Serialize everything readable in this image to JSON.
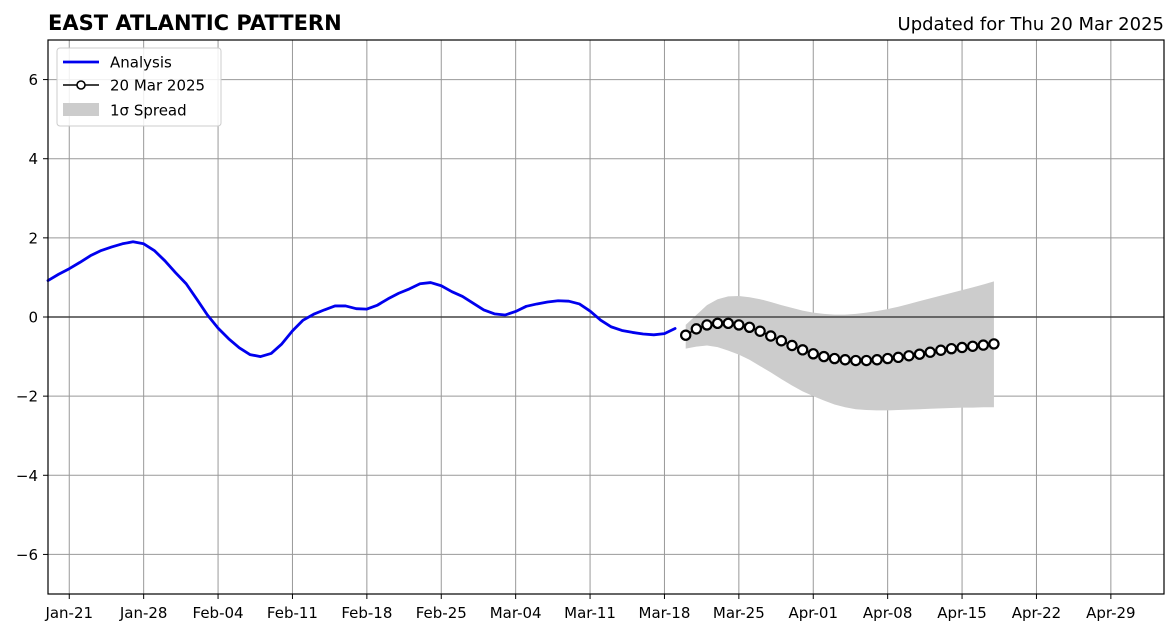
{
  "chart_data": {
    "type": "line",
    "title": "EAST ATLANTIC PATTERN",
    "subtitle": "Updated for Thu 20 Mar 2025",
    "xlabel": "",
    "ylabel": "",
    "x_axis": {
      "type": "date",
      "range": [
        "2025-01-19",
        "2025-05-04"
      ],
      "tick_labels": [
        {
          "date": "2025-01-21",
          "label": "Jan-21"
        },
        {
          "date": "2025-01-28",
          "label": "Jan-28"
        },
        {
          "date": "2025-02-04",
          "label": "Feb-04"
        },
        {
          "date": "2025-02-11",
          "label": "Feb-11"
        },
        {
          "date": "2025-02-18",
          "label": "Feb-18"
        },
        {
          "date": "2025-02-25",
          "label": "Feb-25"
        },
        {
          "date": "2025-03-04",
          "label": "Mar-04"
        },
        {
          "date": "2025-03-11",
          "label": "Mar-11"
        },
        {
          "date": "2025-03-18",
          "label": "Mar-18"
        },
        {
          "date": "2025-03-25",
          "label": "Mar-25"
        },
        {
          "date": "2025-04-01",
          "label": "Apr-01"
        },
        {
          "date": "2025-04-08",
          "label": "Apr-08"
        },
        {
          "date": "2025-04-15",
          "label": "Apr-15"
        },
        {
          "date": "2025-04-22",
          "label": "Apr-22"
        },
        {
          "date": "2025-04-29",
          "label": "Apr-29"
        }
      ]
    },
    "y_axis": {
      "range": [
        -7,
        7
      ],
      "ticks": [
        -6,
        -4,
        -2,
        0,
        2,
        4,
        6
      ],
      "tick_labels": [
        "−6",
        "−4",
        "−2",
        "0",
        "2",
        "4",
        "6"
      ]
    },
    "grid": true,
    "zero_line": true,
    "legend": {
      "placement": "top-left",
      "entries": [
        {
          "key": "analysis",
          "label": "Analysis"
        },
        {
          "key": "forecast",
          "label": "20 Mar 2025"
        },
        {
          "key": "spread",
          "label": "1σ Spread"
        }
      ]
    },
    "colors": {
      "analysis": "#0000ee",
      "forecast": "#000000",
      "spread": "#cccccc",
      "grid": "#999999"
    },
    "series": [
      {
        "key": "analysis",
        "name": "Analysis",
        "points": [
          [
            "2025-01-19",
            0.92
          ],
          [
            "2025-01-20",
            1.08
          ],
          [
            "2025-01-21",
            1.22
          ],
          [
            "2025-01-22",
            1.38
          ],
          [
            "2025-01-23",
            1.55
          ],
          [
            "2025-01-24",
            1.68
          ],
          [
            "2025-01-25",
            1.77
          ],
          [
            "2025-01-26",
            1.85
          ],
          [
            "2025-01-27",
            1.9
          ],
          [
            "2025-01-28",
            1.85
          ],
          [
            "2025-01-29",
            1.68
          ],
          [
            "2025-01-30",
            1.42
          ],
          [
            "2025-01-31",
            1.12
          ],
          [
            "2025-02-01",
            0.84
          ],
          [
            "2025-02-02",
            0.45
          ],
          [
            "2025-02-03",
            0.05
          ],
          [
            "2025-02-04",
            -0.28
          ],
          [
            "2025-02-05",
            -0.55
          ],
          [
            "2025-02-06",
            -0.78
          ],
          [
            "2025-02-07",
            -0.95
          ],
          [
            "2025-02-08",
            -1.0
          ],
          [
            "2025-02-09",
            -0.92
          ],
          [
            "2025-02-10",
            -0.68
          ],
          [
            "2025-02-11",
            -0.35
          ],
          [
            "2025-02-12",
            -0.08
          ],
          [
            "2025-02-13",
            0.07
          ],
          [
            "2025-02-14",
            0.18
          ],
          [
            "2025-02-15",
            0.28
          ],
          [
            "2025-02-16",
            0.28
          ],
          [
            "2025-02-17",
            0.21
          ],
          [
            "2025-02-18",
            0.2
          ],
          [
            "2025-02-19",
            0.3
          ],
          [
            "2025-02-20",
            0.46
          ],
          [
            "2025-02-21",
            0.6
          ],
          [
            "2025-02-22",
            0.71
          ],
          [
            "2025-02-23",
            0.84
          ],
          [
            "2025-02-24",
            0.87
          ],
          [
            "2025-02-25",
            0.79
          ],
          [
            "2025-02-26",
            0.64
          ],
          [
            "2025-02-27",
            0.52
          ],
          [
            "2025-02-28",
            0.35
          ],
          [
            "2025-03-01",
            0.18
          ],
          [
            "2025-03-02",
            0.08
          ],
          [
            "2025-03-03",
            0.05
          ],
          [
            "2025-03-04",
            0.14
          ],
          [
            "2025-03-05",
            0.27
          ],
          [
            "2025-03-06",
            0.33
          ],
          [
            "2025-03-07",
            0.38
          ],
          [
            "2025-03-08",
            0.41
          ],
          [
            "2025-03-09",
            0.4
          ],
          [
            "2025-03-10",
            0.33
          ],
          [
            "2025-03-11",
            0.15
          ],
          [
            "2025-03-12",
            -0.08
          ],
          [
            "2025-03-13",
            -0.25
          ],
          [
            "2025-03-14",
            -0.34
          ],
          [
            "2025-03-15",
            -0.39
          ],
          [
            "2025-03-16",
            -0.43
          ],
          [
            "2025-03-17",
            -0.45
          ],
          [
            "2025-03-18",
            -0.42
          ],
          [
            "2025-03-19",
            -0.29
          ]
        ]
      },
      {
        "key": "forecast",
        "name": "20 Mar 2025",
        "points": [
          [
            "2025-03-20",
            -0.46
          ],
          [
            "2025-03-21",
            -0.3
          ],
          [
            "2025-03-22",
            -0.2
          ],
          [
            "2025-03-23",
            -0.16
          ],
          [
            "2025-03-24",
            -0.16
          ],
          [
            "2025-03-25",
            -0.2
          ],
          [
            "2025-03-26",
            -0.26
          ],
          [
            "2025-03-27",
            -0.36
          ],
          [
            "2025-03-28",
            -0.48
          ],
          [
            "2025-03-29",
            -0.6
          ],
          [
            "2025-03-30",
            -0.72
          ],
          [
            "2025-03-31",
            -0.83
          ],
          [
            "2025-04-01",
            -0.93
          ],
          [
            "2025-04-02",
            -1.0
          ],
          [
            "2025-04-03",
            -1.05
          ],
          [
            "2025-04-04",
            -1.08
          ],
          [
            "2025-04-05",
            -1.1
          ],
          [
            "2025-04-06",
            -1.1
          ],
          [
            "2025-04-07",
            -1.08
          ],
          [
            "2025-04-08",
            -1.05
          ],
          [
            "2025-04-09",
            -1.02
          ],
          [
            "2025-04-10",
            -0.98
          ],
          [
            "2025-04-11",
            -0.94
          ],
          [
            "2025-04-12",
            -0.89
          ],
          [
            "2025-04-13",
            -0.84
          ],
          [
            "2025-04-14",
            -0.8
          ],
          [
            "2025-04-15",
            -0.77
          ],
          [
            "2025-04-16",
            -0.74
          ],
          [
            "2025-04-17",
            -0.71
          ],
          [
            "2025-04-18",
            -0.68
          ]
        ]
      }
    ],
    "spread_band": {
      "key": "spread",
      "name": "1σ Spread",
      "points": [
        [
          "2025-03-20",
          -0.8,
          -0.2
        ],
        [
          "2025-03-21",
          -0.75,
          0.05
        ],
        [
          "2025-03-22",
          -0.72,
          0.3
        ],
        [
          "2025-03-23",
          -0.76,
          0.45
        ],
        [
          "2025-03-24",
          -0.85,
          0.52
        ],
        [
          "2025-03-25",
          -0.95,
          0.53
        ],
        [
          "2025-03-26",
          -1.08,
          0.5
        ],
        [
          "2025-03-27",
          -1.24,
          0.45
        ],
        [
          "2025-03-28",
          -1.4,
          0.38
        ],
        [
          "2025-03-29",
          -1.57,
          0.3
        ],
        [
          "2025-03-30",
          -1.73,
          0.23
        ],
        [
          "2025-03-31",
          -1.88,
          0.16
        ],
        [
          "2025-04-01",
          -2.0,
          0.11
        ],
        [
          "2025-04-02",
          -2.11,
          0.08
        ],
        [
          "2025-04-03",
          -2.21,
          0.06
        ],
        [
          "2025-04-04",
          -2.28,
          0.06
        ],
        [
          "2025-04-05",
          -2.33,
          0.08
        ],
        [
          "2025-04-06",
          -2.35,
          0.11
        ],
        [
          "2025-04-07",
          -2.36,
          0.15
        ],
        [
          "2025-04-08",
          -2.36,
          0.2
        ],
        [
          "2025-04-09",
          -2.35,
          0.26
        ],
        [
          "2025-04-10",
          -2.34,
          0.33
        ],
        [
          "2025-04-11",
          -2.33,
          0.4
        ],
        [
          "2025-04-12",
          -2.32,
          0.47
        ],
        [
          "2025-04-13",
          -2.31,
          0.54
        ],
        [
          "2025-04-14",
          -2.3,
          0.61
        ],
        [
          "2025-04-15",
          -2.29,
          0.68
        ],
        [
          "2025-04-16",
          -2.29,
          0.75
        ],
        [
          "2025-04-17",
          -2.28,
          0.82
        ],
        [
          "2025-04-18",
          -2.28,
          0.9
        ]
      ]
    }
  }
}
